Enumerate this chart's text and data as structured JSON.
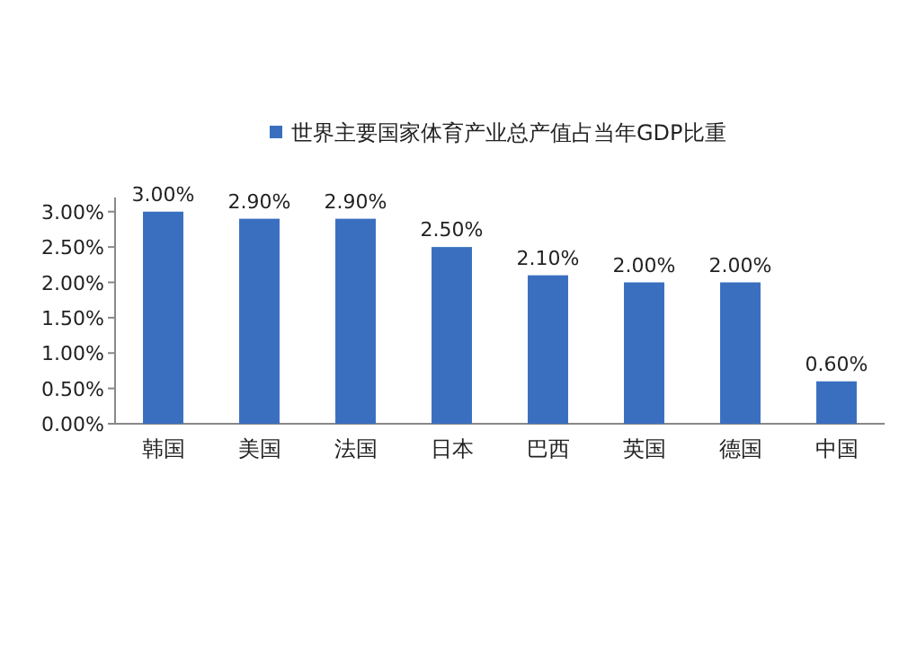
{
  "chart_data": {
    "type": "bar",
    "legend": "top",
    "categories": [
      "韩国",
      "美国",
      "法国",
      "日本",
      "巴西",
      "英国",
      "德国",
      "中国"
    ],
    "series": [
      {
        "name": "世界主要国家体育产业总产值占当年GDP比重",
        "color": "#3a6fc0",
        "values": [
          3.0,
          2.9,
          2.9,
          2.5,
          2.1,
          2.0,
          2.0,
          0.6
        ],
        "value_labels": [
          "3.00%",
          "2.90%",
          "2.90%",
          "2.50%",
          "2.10%",
          "2.00%",
          "2.00%",
          "0.60%"
        ]
      }
    ],
    "ylim": [
      0,
      3.2
    ],
    "yticks": [
      {
        "value": 0,
        "label": "0.00%"
      },
      {
        "value": 0.5,
        "label": "0.50%"
      },
      {
        "value": 1,
        "label": "1.00%"
      },
      {
        "value": 1.5,
        "label": "1.50%"
      },
      {
        "value": 2,
        "label": "2.00%"
      },
      {
        "value": 2.5,
        "label": "2.50%"
      },
      {
        "value": 3,
        "label": "3.00%"
      }
    ],
    "grid": false
  }
}
